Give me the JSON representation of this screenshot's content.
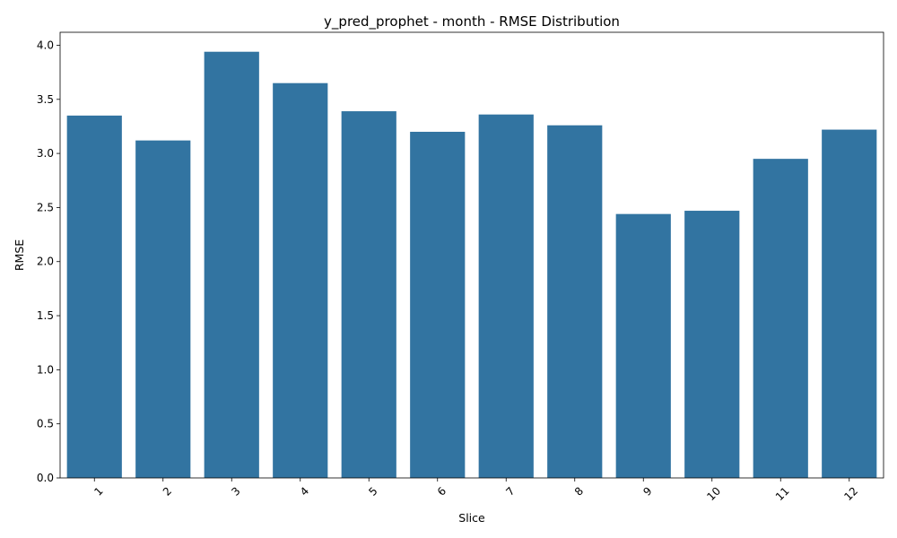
{
  "chart_data": {
    "type": "bar",
    "title": "y_pred_prophet - month - RMSE Distribution",
    "xlabel": "Slice",
    "ylabel": "RMSE",
    "categories": [
      "1",
      "2",
      "3",
      "4",
      "5",
      "6",
      "7",
      "8",
      "9",
      "10",
      "11",
      "12"
    ],
    "values": [
      3.35,
      3.12,
      3.94,
      3.65,
      3.39,
      3.2,
      3.36,
      3.26,
      2.44,
      2.47,
      2.95,
      3.22
    ],
    "ylim": [
      0,
      4.12
    ],
    "yticks": [
      "0.0",
      "0.5",
      "1.0",
      "1.5",
      "2.0",
      "2.5",
      "3.0",
      "3.5",
      "4.0"
    ],
    "bar_color": "#3274a1",
    "grid": false,
    "legend": "none"
  }
}
